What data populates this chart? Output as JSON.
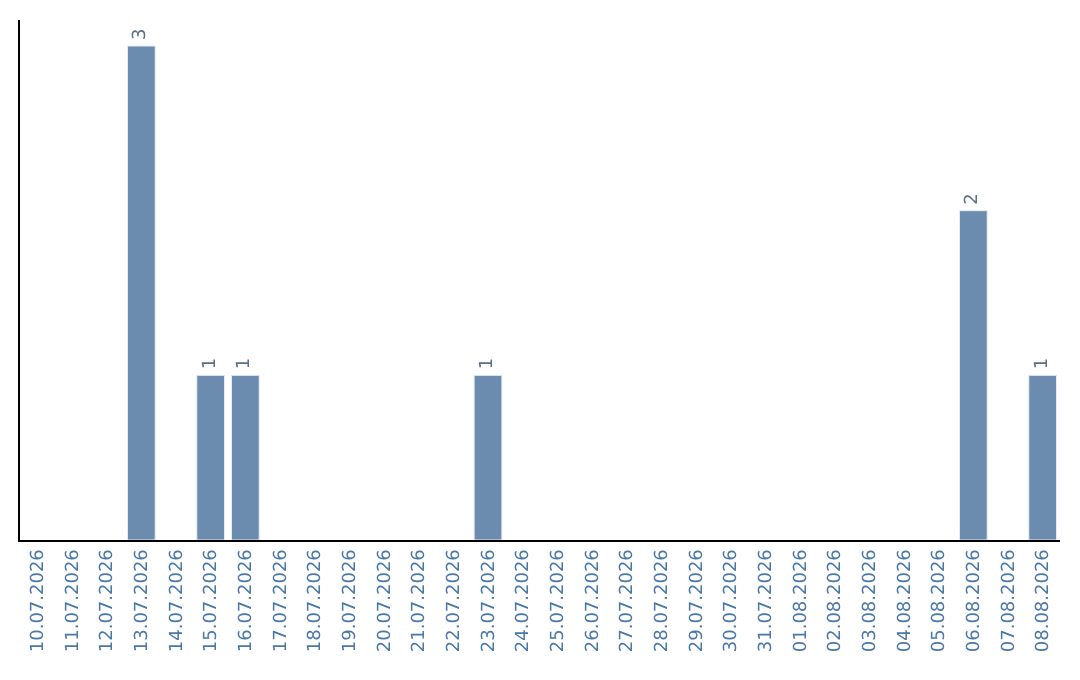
{
  "chart_data": {
    "type": "bar",
    "categories": [
      "10.07.2026",
      "11.07.2026",
      "12.07.2026",
      "13.07.2026",
      "14.07.2026",
      "15.07.2026",
      "16.07.2026",
      "17.07.2026",
      "18.07.2026",
      "19.07.2026",
      "20.07.2026",
      "21.07.2026",
      "22.07.2026",
      "23.07.2026",
      "24.07.2026",
      "25.07.2026",
      "26.07.2026",
      "27.07.2026",
      "28.07.2026",
      "29.07.2026",
      "30.07.2026",
      "31.07.2026",
      "01.08.2026",
      "02.08.2026",
      "03.08.2026",
      "04.08.2026",
      "05.08.2026",
      "06.08.2026",
      "07.08.2026",
      "08.08.2026"
    ],
    "values": [
      null,
      null,
      null,
      3,
      null,
      1,
      1,
      null,
      null,
      null,
      null,
      null,
      null,
      1,
      null,
      null,
      null,
      null,
      null,
      null,
      null,
      null,
      null,
      null,
      null,
      null,
      null,
      2,
      null,
      1
    ],
    "value_labels": [
      null,
      null,
      null,
      "3",
      null,
      "1",
      "1",
      null,
      null,
      null,
      null,
      null,
      null,
      "1",
      null,
      null,
      null,
      null,
      null,
      null,
      null,
      null,
      null,
      null,
      null,
      null,
      null,
      "2",
      null,
      "1"
    ],
    "color": "#6b8cae",
    "tick_labels": "x",
    "legend": false
  }
}
